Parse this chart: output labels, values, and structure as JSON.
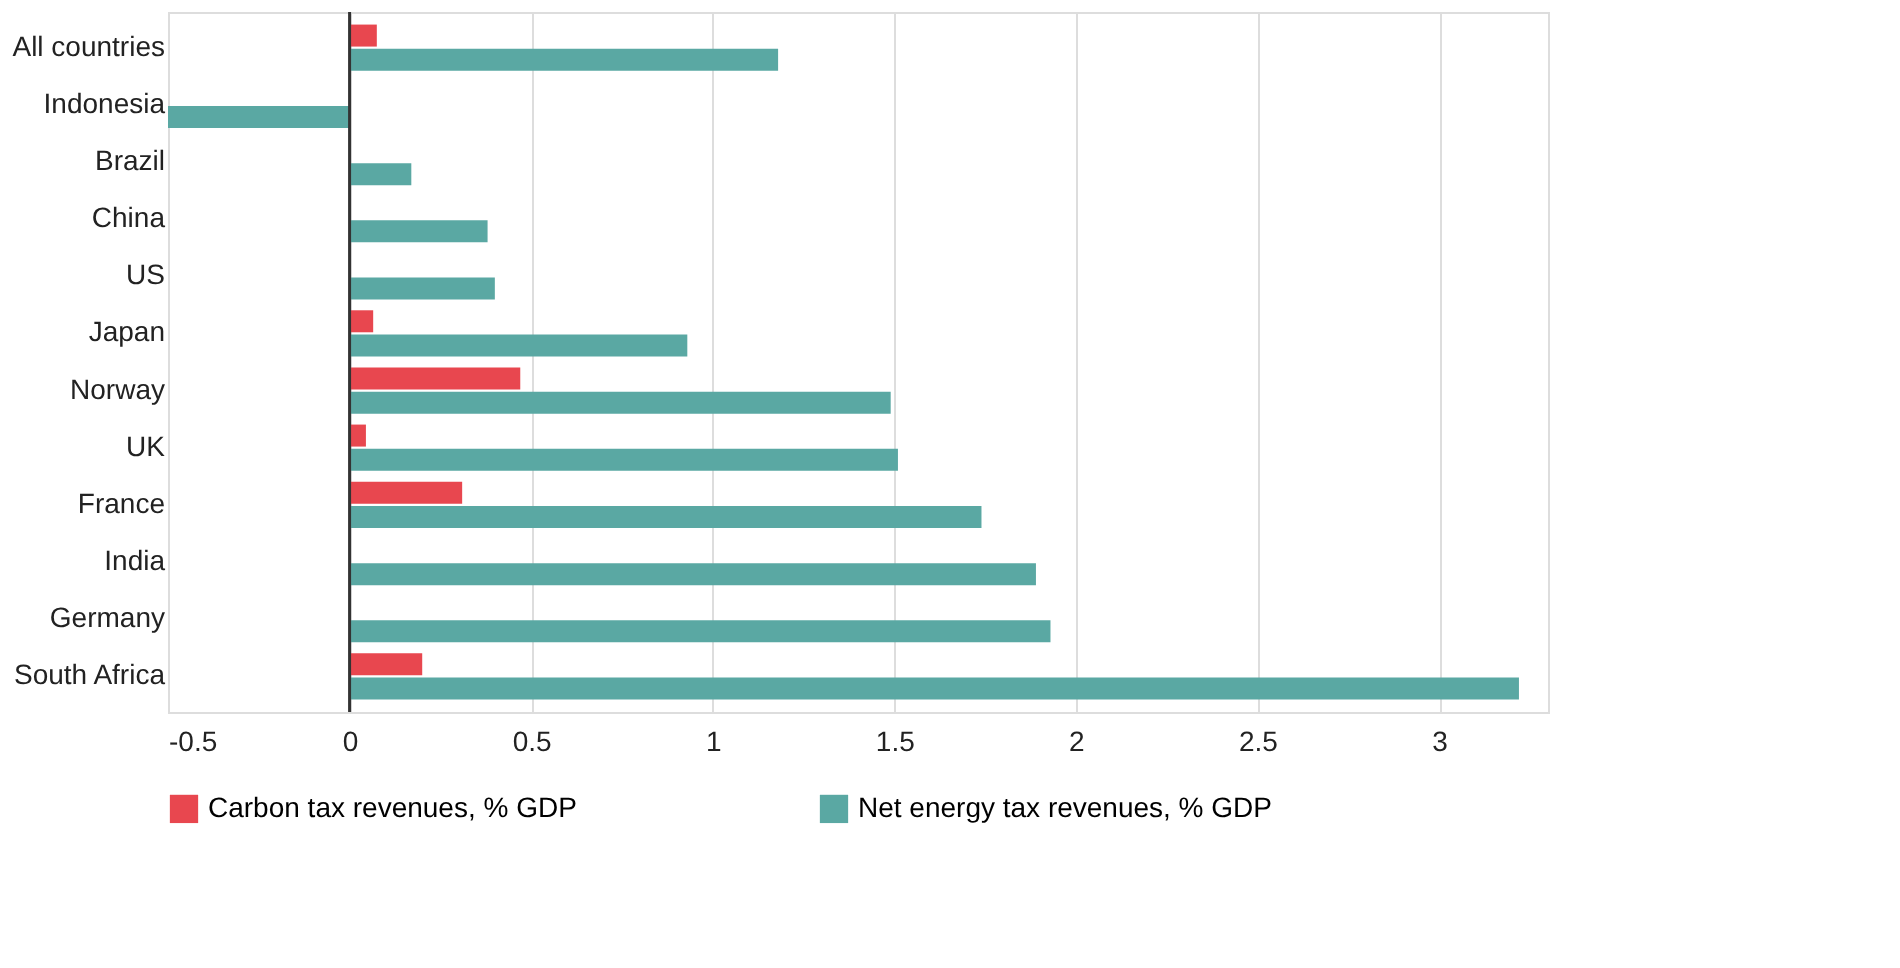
{
  "chart_data": {
    "type": "bar",
    "orientation": "horizontal",
    "categories": [
      "All countries",
      "Indonesia",
      "Brazil",
      "China",
      "US",
      "Japan",
      "Norway",
      "UK",
      "France",
      "India",
      "Germany",
      "South Africa"
    ],
    "series": [
      {
        "name": "Carbon tax revenues, % GDP",
        "color": "#e8474f",
        "values": [
          0.075,
          null,
          null,
          null,
          null,
          0.065,
          0.47,
          0.045,
          0.31,
          null,
          null,
          0.2
        ]
      },
      {
        "name": "Net energy tax revenues, % GDP",
        "color": "#5aa8a3",
        "values": [
          1.18,
          -0.5,
          0.17,
          0.38,
          0.4,
          0.93,
          1.49,
          1.51,
          1.74,
          1.89,
          1.93,
          3.22
        ]
      }
    ],
    "xlim": [
      -0.5,
      3.3
    ],
    "xticks": [
      -0.5,
      0,
      0.5,
      1,
      1.5,
      2,
      2.5,
      3
    ],
    "grid": "x",
    "legend": "bottom"
  }
}
